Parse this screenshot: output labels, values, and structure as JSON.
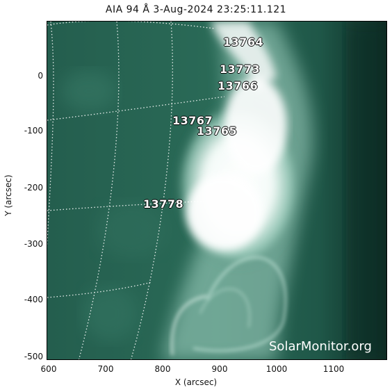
{
  "title": "AIA 94 Å  3-Aug-2024 23:25:11.121",
  "xlabel": "X (arcsec)",
  "ylabel": "Y (arcsec)",
  "x_ticks": [
    "600",
    "700",
    "800",
    "900",
    "1000",
    "1100"
  ],
  "y_ticks": [
    "0",
    "-100",
    "-200",
    "-300",
    "-400",
    "-500"
  ],
  "active_regions": [
    "13764",
    "13773",
    "13766",
    "13767",
    "13765",
    "13778"
  ],
  "watermark": "SolarMonitor.org",
  "colors": {
    "corona_dark": "#0f3a2e",
    "corona_mid": "#2b6b58",
    "flare": "#ffffff"
  }
}
